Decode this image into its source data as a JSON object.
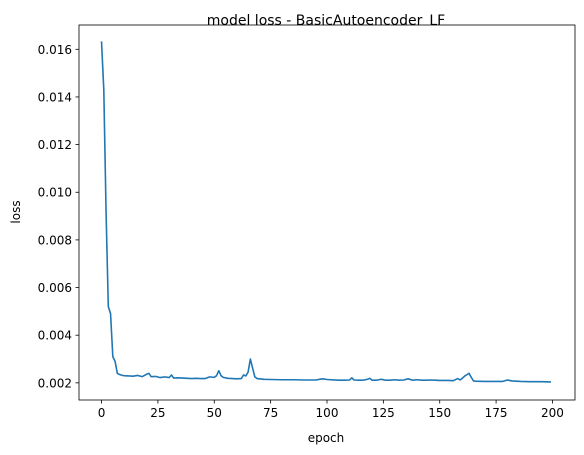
{
  "chart_data": {
    "type": "line",
    "title": "model loss - BasicAutoencoder_LF",
    "xlabel": "epoch",
    "ylabel": "loss",
    "xlim": [
      -10,
      210
    ],
    "ylim": [
      0.00128,
      0.01702
    ],
    "xticks": [
      0,
      25,
      50,
      75,
      100,
      125,
      150,
      175,
      200
    ],
    "yticks": [
      0.002,
      0.004,
      0.006,
      0.008,
      0.01,
      0.012,
      0.014,
      0.016
    ],
    "xtick_labels": [
      "0",
      "25",
      "50",
      "75",
      "100",
      "125",
      "150",
      "175",
      "200"
    ],
    "ytick_labels": [
      "0.002",
      "0.004",
      "0.006",
      "0.008",
      "0.010",
      "0.012",
      "0.014",
      "0.016"
    ],
    "grid": false,
    "legend": "none",
    "series": [
      {
        "color": "#1f77b4",
        "x": [
          0,
          1,
          2,
          3,
          4,
          5,
          6,
          7,
          8,
          9,
          10,
          12,
          14,
          16,
          18,
          20,
          21,
          22,
          24,
          26,
          28,
          30,
          31,
          32,
          34,
          36,
          38,
          40,
          42,
          44,
          46,
          48,
          50,
          51,
          52,
          53,
          54,
          56,
          58,
          60,
          62,
          63,
          64,
          65,
          66,
          67,
          68,
          69,
          70,
          72,
          75,
          80,
          85,
          90,
          95,
          98,
          100,
          105,
          108,
          110,
          111,
          112,
          114,
          116,
          118,
          119,
          120,
          122,
          124,
          126,
          128,
          130,
          132,
          134,
          136,
          138,
          140,
          142,
          144,
          146,
          148,
          150,
          152,
          154,
          156,
          158,
          159,
          160,
          161,
          162,
          163,
          164,
          165,
          166,
          170,
          175,
          178,
          180,
          182,
          184,
          186,
          190,
          195,
          199
        ],
        "y": [
          0.0163,
          0.0143,
          0.0092,
          0.0052,
          0.0049,
          0.0031,
          0.0029,
          0.0024,
          0.00235,
          0.00232,
          0.0023,
          0.00229,
          0.00228,
          0.00231,
          0.00226,
          0.00236,
          0.0024,
          0.00226,
          0.00227,
          0.00222,
          0.00225,
          0.00222,
          0.00233,
          0.0022,
          0.00221,
          0.0022,
          0.00219,
          0.00218,
          0.00219,
          0.00218,
          0.00218,
          0.00225,
          0.00223,
          0.0023,
          0.00251,
          0.0023,
          0.00223,
          0.00219,
          0.00218,
          0.00217,
          0.00218,
          0.00233,
          0.00229,
          0.00245,
          0.003,
          0.00262,
          0.00225,
          0.00218,
          0.00217,
          0.00215,
          0.00214,
          0.00213,
          0.00213,
          0.00212,
          0.00212,
          0.00217,
          0.00214,
          0.00211,
          0.00211,
          0.00212,
          0.00221,
          0.00212,
          0.00211,
          0.00211,
          0.00215,
          0.00219,
          0.00211,
          0.00211,
          0.00215,
          0.00211,
          0.00211,
          0.00213,
          0.00211,
          0.00212,
          0.00217,
          0.00211,
          0.00213,
          0.00211,
          0.00211,
          0.00212,
          0.00211,
          0.0021,
          0.0021,
          0.0021,
          0.00209,
          0.00218,
          0.00212,
          0.00219,
          0.00228,
          0.00234,
          0.0024,
          0.00223,
          0.00208,
          0.00207,
          0.00206,
          0.00206,
          0.00206,
          0.00212,
          0.00208,
          0.00207,
          0.00206,
          0.00205,
          0.00205,
          0.00204
        ]
      }
    ]
  }
}
